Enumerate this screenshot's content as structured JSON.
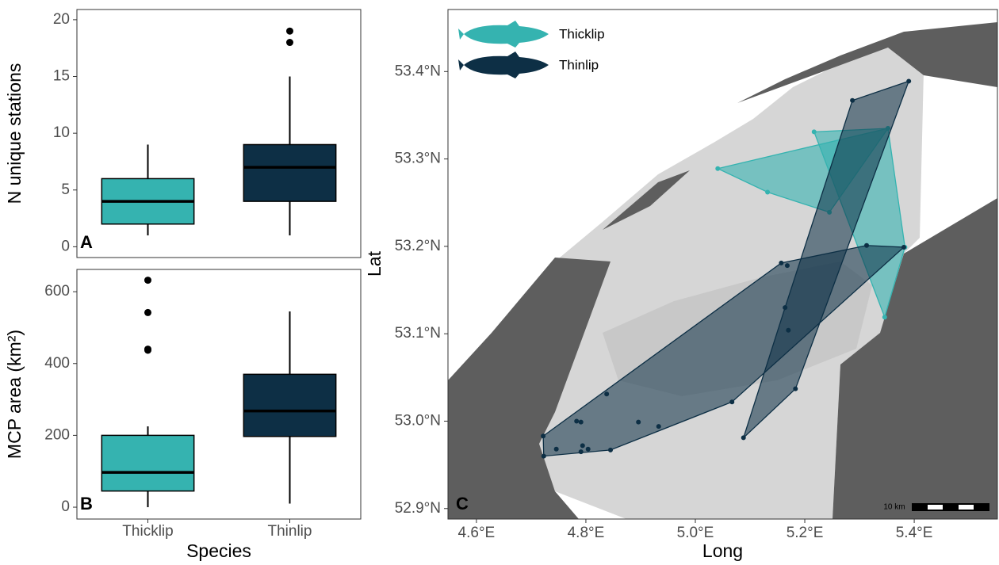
{
  "chart_data": [
    {
      "type": "box",
      "panel_label": "A",
      "ylabel": "N unique stations",
      "categories": [
        "Thicklip",
        "Thinlip"
      ],
      "colors": [
        "#35b3b0",
        "#0d2f45"
      ],
      "boxes": [
        {
          "min": 1,
          "q1": 2,
          "median": 4,
          "q3": 6,
          "max": 9,
          "outliers": []
        },
        {
          "min": 1,
          "q1": 4,
          "median": 7,
          "q3": 9,
          "max": 15,
          "outliers": [
            18,
            19
          ]
        }
      ],
      "ylim": [
        -0.95,
        20.9
      ],
      "yticks": [
        0,
        5,
        10,
        15,
        20
      ]
    },
    {
      "type": "box",
      "panel_label": "B",
      "ylabel": "MCP area (km²)",
      "xlabel": "Species",
      "categories": [
        "Thicklip",
        "Thinlip"
      ],
      "colors": [
        "#35b3b0",
        "#0d2f45"
      ],
      "boxes": [
        {
          "min": 0,
          "q1": 45,
          "median": 97,
          "q3": 200,
          "max": 225,
          "outliers": [
            437,
            440,
            542,
            632
          ]
        },
        {
          "min": 10,
          "q1": 197,
          "median": 268,
          "q3": 370,
          "max": 545,
          "outliers": []
        }
      ],
      "ylim": [
        -33,
        662
      ],
      "yticks": [
        0,
        200,
        400,
        600
      ]
    },
    {
      "type": "map",
      "panel_label": "C",
      "xlabel": "Long",
      "ylabel": "Lat",
      "scale_label": "10 km",
      "xlim": [
        4.548,
        5.552
      ],
      "ylim": [
        52.888,
        53.471
      ],
      "xticks": [
        {
          "value": 4.6,
          "label": "4.6°E"
        },
        {
          "value": 4.8,
          "label": "4.8°E"
        },
        {
          "value": 5.0,
          "label": "5.0°E"
        },
        {
          "value": 5.2,
          "label": "5.2°E"
        },
        {
          "value": 5.4,
          "label": "5.4°E"
        }
      ],
      "yticks": [
        {
          "value": 52.9,
          "label": "52.9°N"
        },
        {
          "value": 53.0,
          "label": "53.0°N"
        },
        {
          "value": 53.1,
          "label": "53.1°N"
        },
        {
          "value": 53.2,
          "label": "53.2°N"
        },
        {
          "value": 53.3,
          "label": "53.3°N"
        },
        {
          "value": 53.4,
          "label": "53.4°N"
        }
      ],
      "series": [
        {
          "name": "Thicklip",
          "color": "#35b3b0",
          "groups": [
            {
              "x": [
                5.041,
                5.132,
                5.245,
                5.352
              ],
              "y": [
                53.289,
                53.262,
                53.239,
                53.335
              ]
            },
            {
              "x": [
                5.217,
                5.352,
                5.383,
                5.346,
                5.313
              ],
              "y": [
                53.331,
                53.335,
                53.199,
                53.119,
                53.201
              ]
            }
          ]
        },
        {
          "name": "Thinlip",
          "color": "#0d2f45",
          "groups": [
            {
              "x": [
                5.287,
                5.39,
                5.183,
                5.088,
                5.164,
                5.17
              ],
              "y": [
                53.367,
                53.389,
                53.037,
                52.981,
                53.13,
                53.104
              ]
            },
            {
              "x": [
                4.722,
                4.723,
                4.845,
                5.067,
                5.313,
                5.381,
                5.157,
                4.838,
                4.783,
                4.791,
                4.896,
                4.933,
                4.746,
                4.794,
                4.804,
                4.791,
                5.168
              ],
              "y": [
                52.983,
                52.96,
                52.967,
                53.022,
                53.201,
                53.199,
                53.181,
                53.031,
                53.0,
                52.999,
                52.999,
                52.994,
                52.968,
                52.972,
                52.968,
                52.965,
                53.178
              ]
            }
          ]
        }
      ]
    }
  ]
}
